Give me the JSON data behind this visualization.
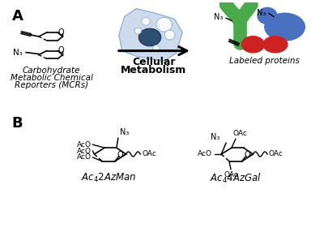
{
  "background_color": "#ffffff",
  "panel_A_label": "A",
  "panel_B_label": "B",
  "arrow_label_line1": "Cellular",
  "arrow_label_line2": "Metabolism",
  "left_label_line1": "Carbohydrate",
  "left_label_line2": "Metabolic Chemical",
  "left_label_line3": "Reporters (MCRs)",
  "right_label": "Labeled proteins",
  "cell_color": "#c8d8ec",
  "cell_nucleus_color": "#2c5070",
  "protein_green_color": "#4aaa4a",
  "protein_blue_color": "#4a70c0",
  "protein_red_color": "#cc2222",
  "fig_width": 4.0,
  "fig_height": 2.81,
  "dpi": 100
}
